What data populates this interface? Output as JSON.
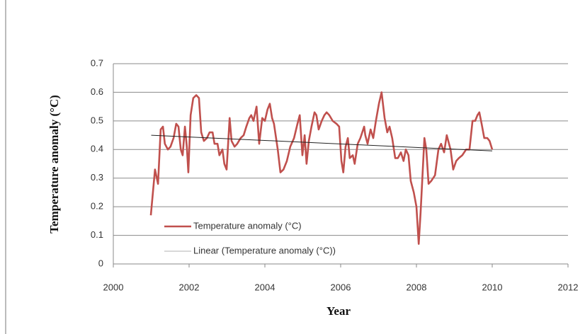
{
  "chart_data": {
    "type": "line",
    "xlabel": "Year",
    "ylabel": "Temperature anomaly (°C)",
    "xlim": [
      2000,
      2012
    ],
    "xticks": [
      2000,
      2002,
      2004,
      2006,
      2008,
      2010,
      2012
    ],
    "ylim": [
      0,
      0.7
    ],
    "yticks": [
      0,
      0.1,
      0.2,
      0.3,
      0.4,
      0.5,
      0.6,
      0.7
    ],
    "grid": true,
    "legend": "lower left",
    "series": [
      {
        "name": "Temperature anomaly (°C)",
        "color": "#c0504d",
        "x": [
          2000.99,
          2001.1,
          2001.18,
          2001.25,
          2001.31,
          2001.36,
          2001.44,
          2001.51,
          2001.59,
          2001.66,
          2001.72,
          2001.78,
          2001.83,
          2001.89,
          2001.94,
          2001.98,
          2002.04,
          2002.11,
          2002.19,
          2002.26,
          2002.32,
          2002.39,
          2002.47,
          2002.54,
          2002.62,
          2002.67,
          2002.75,
          2002.8,
          2002.88,
          2002.93,
          2002.99,
          2003.07,
          2003.12,
          2003.2,
          2003.27,
          2003.36,
          2003.44,
          2003.51,
          2003.59,
          2003.64,
          2003.7,
          2003.78,
          2003.85,
          2003.93,
          2004.0,
          2004.07,
          2004.13,
          2004.19,
          2004.24,
          2004.34,
          2004.41,
          2004.49,
          2004.58,
          2004.67,
          2004.77,
          2004.86,
          2004.92,
          2004.99,
          2005.05,
          2005.1,
          2005.16,
          2005.23,
          2005.31,
          2005.36,
          2005.42,
          2005.5,
          2005.57,
          2005.63,
          2005.7,
          2005.79,
          2005.89,
          2005.96,
          2006.02,
          2006.07,
          2006.13,
          2006.19,
          2006.24,
          2006.32,
          2006.37,
          2006.45,
          2006.52,
          2006.62,
          2006.65,
          2006.71,
          2006.79,
          2006.86,
          2006.93,
          2007.01,
          2007.08,
          2007.16,
          2007.23,
          2007.29,
          2007.36,
          2007.44,
          2007.51,
          2007.59,
          2007.66,
          2007.72,
          2007.79,
          2007.85,
          2007.93,
          2008.0,
          2008.06,
          2008.11,
          2008.21,
          2008.26,
          2008.32,
          2008.39,
          2008.49,
          2008.58,
          2008.65,
          2008.73,
          2008.8,
          2008.9,
          2008.97,
          2009.05,
          2009.12,
          2009.21,
          2009.31,
          2009.4,
          2009.48,
          2009.55,
          2009.61,
          2009.66,
          2009.72,
          2009.79,
          2009.87,
          2009.93,
          2010.0
        ],
        "values": [
          0.17,
          0.33,
          0.28,
          0.47,
          0.48,
          0.42,
          0.4,
          0.41,
          0.44,
          0.49,
          0.48,
          0.4,
          0.38,
          0.48,
          0.41,
          0.32,
          0.52,
          0.58,
          0.59,
          0.58,
          0.46,
          0.43,
          0.44,
          0.46,
          0.46,
          0.42,
          0.42,
          0.38,
          0.4,
          0.35,
          0.33,
          0.51,
          0.43,
          0.41,
          0.42,
          0.44,
          0.45,
          0.48,
          0.51,
          0.52,
          0.5,
          0.55,
          0.42,
          0.51,
          0.5,
          0.54,
          0.56,
          0.51,
          0.49,
          0.4,
          0.32,
          0.33,
          0.36,
          0.41,
          0.44,
          0.49,
          0.52,
          0.38,
          0.45,
          0.35,
          0.43,
          0.48,
          0.53,
          0.52,
          0.47,
          0.5,
          0.52,
          0.53,
          0.52,
          0.5,
          0.49,
          0.48,
          0.36,
          0.32,
          0.41,
          0.44,
          0.37,
          0.38,
          0.35,
          0.42,
          0.44,
          0.48,
          0.45,
          0.42,
          0.47,
          0.44,
          0.5,
          0.56,
          0.6,
          0.51,
          0.46,
          0.48,
          0.44,
          0.37,
          0.37,
          0.39,
          0.36,
          0.4,
          0.38,
          0.29,
          0.25,
          0.2,
          0.07,
          0.18,
          0.44,
          0.4,
          0.28,
          0.29,
          0.31,
          0.4,
          0.42,
          0.39,
          0.45,
          0.4,
          0.33,
          0.36,
          0.37,
          0.38,
          0.4,
          0.4,
          0.5,
          0.5,
          0.52,
          0.53,
          0.49,
          0.44,
          0.44,
          0.43,
          0.4
        ]
      },
      {
        "name": "Linear (Temperature anomaly (°C))",
        "color": "#222222",
        "x": [
          2001,
          2010
        ],
        "values": [
          0.45,
          0.395
        ]
      }
    ]
  }
}
